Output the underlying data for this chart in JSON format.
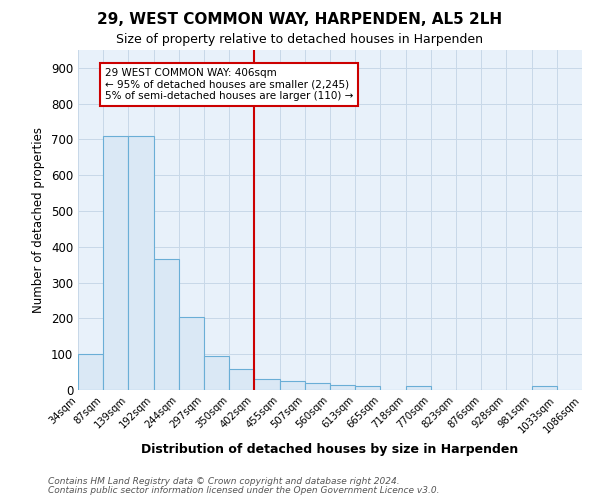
{
  "title": "29, WEST COMMON WAY, HARPENDEN, AL5 2LH",
  "subtitle": "Size of property relative to detached houses in Harpenden",
  "xlabel": "Distribution of detached houses by size in Harpenden",
  "ylabel": "Number of detached properties",
  "bin_edges": [
    34,
    87,
    139,
    192,
    244,
    297,
    350,
    402,
    455,
    507,
    560,
    613,
    665,
    718,
    770,
    823,
    876,
    928,
    981,
    1033,
    1086
  ],
  "bar_heights": [
    100,
    710,
    710,
    365,
    205,
    95,
    60,
    30,
    25,
    20,
    15,
    10,
    0,
    10,
    0,
    0,
    0,
    0,
    10,
    0
  ],
  "bar_color": "#dae8f5",
  "bar_edge_color": "#6aaed6",
  "grid_color": "#c8d8e8",
  "vline_x": 402,
  "vline_color": "#cc0000",
  "annotation_text": "29 WEST COMMON WAY: 406sqm\n← 95% of detached houses are smaller (2,245)\n5% of semi-detached houses are larger (110) →",
  "annotation_box_color": "white",
  "annotation_box_edge": "#cc0000",
  "ylim": [
    0,
    950
  ],
  "yticks": [
    0,
    100,
    200,
    300,
    400,
    500,
    600,
    700,
    800,
    900
  ],
  "footer_line1": "Contains HM Land Registry data © Crown copyright and database right 2024.",
  "footer_line2": "Contains public sector information licensed under the Open Government Licence v3.0.",
  "bg_color": "#e8f1fa"
}
